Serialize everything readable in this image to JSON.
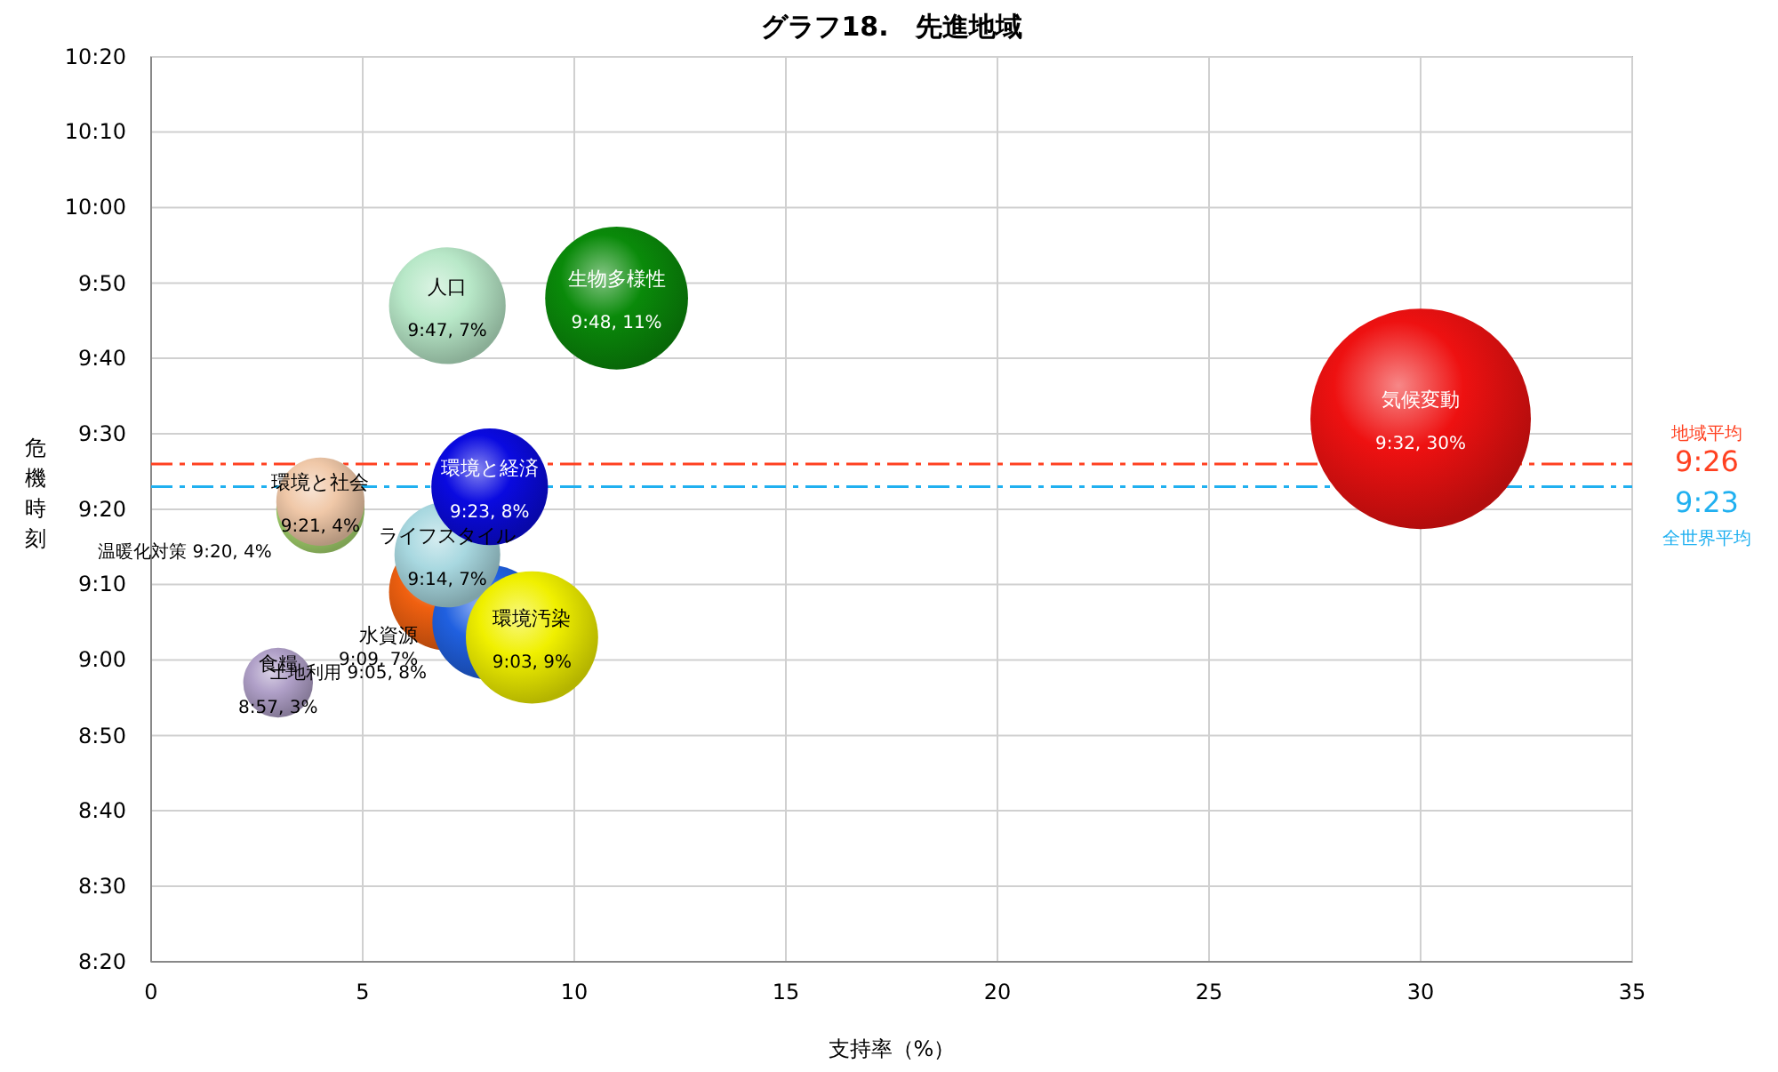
{
  "chart_data": {
    "type": "bubble",
    "title": "グラフ18.　先進地域",
    "xlabel": "支持率（%）",
    "ylabel": "危機時刻",
    "xlim": [
      0,
      35
    ],
    "xticks": [
      0,
      5,
      10,
      15,
      20,
      25,
      30,
      35
    ],
    "ylim": [
      8.333,
      10.333
    ],
    "yticks": [
      {
        "value": 8.333,
        "label": "8:20"
      },
      {
        "value": 8.5,
        "label": "8:30"
      },
      {
        "value": 8.667,
        "label": "8:40"
      },
      {
        "value": 8.833,
        "label": "8:50"
      },
      {
        "value": 9,
        "label": "9:00"
      },
      {
        "value": 9.167,
        "label": "9:10"
      },
      {
        "value": 9.333,
        "label": "9:20"
      },
      {
        "value": 9.5,
        "label": "9:30"
      },
      {
        "value": 9.667,
        "label": "9:40"
      },
      {
        "value": 9.833,
        "label": "9:50"
      },
      {
        "value": 10,
        "label": "10:00"
      },
      {
        "value": 10.167,
        "label": "10:10"
      },
      {
        "value": 10.333,
        "label": "10:20"
      }
    ],
    "grid": true,
    "series": [
      {
        "name": "水資源",
        "color": "#f06010",
        "x": [
          7
        ],
        "values": [
          9.15
        ],
        "sizes": [
          0.28
        ],
        "value_labels": [
          "9:09, 7%"
        ]
      },
      {
        "name": "土地利用",
        "color": "#2060e0",
        "x": [
          8
        ],
        "values": [
          9.083
        ],
        "sizes": [
          0.27
        ],
        "value_labels": [
          "9:05, 8%"
        ]
      },
      {
        "name": "ライフスタイル",
        "color": "#a8d8e0",
        "x": [
          7
        ],
        "values": [
          9.233
        ],
        "sizes": [
          0.23
        ],
        "value_labels": [
          "9:14, 7%"
        ]
      },
      {
        "name": "環境汚染",
        "color": "#f0f000",
        "x": [
          9
        ],
        "values": [
          9.05
        ],
        "sizes": [
          0.36
        ],
        "value_labels": [
          "9:03, 9%"
        ]
      },
      {
        "name": "温暖化対策",
        "color": "#a8d870",
        "x": [
          4
        ],
        "values": [
          9.333
        ],
        "sizes": [
          0.16
        ],
        "value_labels": [
          "9:20, 4%"
        ]
      },
      {
        "name": "環境と社会",
        "color": "#f0c8a8",
        "x": [
          4
        ],
        "values": [
          9.35
        ],
        "sizes": [
          0.16
        ],
        "value_labels": [
          "9:21, 4%"
        ]
      },
      {
        "name": "環境と経済",
        "color": "#0a0ae0",
        "x": [
          8
        ],
        "values": [
          9.383
        ],
        "sizes": [
          0.28
        ],
        "value_labels": [
          "9:23, 8%"
        ]
      },
      {
        "name": "食糧",
        "color": "#b0a0c8",
        "x": [
          3
        ],
        "values": [
          8.95
        ],
        "sizes": [
          0.1
        ],
        "value_labels": [
          "8:57, 3%"
        ]
      },
      {
        "name": "人口",
        "color": "#b8e8c8",
        "x": [
          7
        ],
        "values": [
          9.783
        ],
        "sizes": [
          0.28
        ],
        "value_labels": [
          "9:47, 7%"
        ]
      },
      {
        "name": "生物多様性",
        "color": "#0a8a0a",
        "x": [
          11
        ],
        "values": [
          9.8
        ],
        "sizes": [
          0.42
        ],
        "value_labels": [
          "9:48, 11%"
        ]
      },
      {
        "name": "気候変動",
        "color": "#ee1111",
        "x": [
          30
        ],
        "values": [
          9.533
        ],
        "sizes": [
          1
        ],
        "value_labels": [
          "9:32, 30%"
        ]
      }
    ],
    "ref_lines": [
      {
        "axis": "y",
        "value": 9.433,
        "label": "地域平均 9:26",
        "color": "#ff4020",
        "line_style": "dashdot"
      },
      {
        "axis": "y",
        "value": 9.383,
        "label": "9:23 全世界平均",
        "color": "#20b0f0",
        "line_style": "dashdot"
      }
    ]
  }
}
